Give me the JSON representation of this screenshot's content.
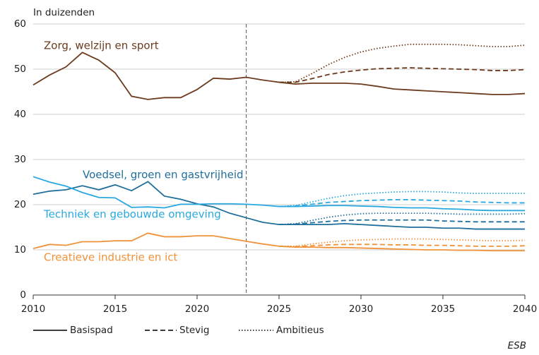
{
  "chart_data": {
    "type": "line",
    "y_label": "In duizenden",
    "source": "ESB",
    "x": [
      2010,
      2011,
      2012,
      2013,
      2014,
      2015,
      2016,
      2017,
      2018,
      2019,
      2020,
      2021,
      2022,
      2023,
      2024,
      2025,
      2026,
      2027,
      2028,
      2029,
      2030,
      2031,
      2032,
      2033,
      2034,
      2035,
      2036,
      2037,
      2038,
      2039,
      2040
    ],
    "xlim": [
      2010,
      2040
    ],
    "xticks": [
      2010,
      2015,
      2020,
      2025,
      2030,
      2035,
      2040
    ],
    "ylim": [
      0,
      60
    ],
    "yticks": [
      0,
      10,
      20,
      30,
      40,
      50,
      60
    ],
    "grid": true,
    "vline": 2023,
    "scenarios": [
      {
        "name": "Basispad",
        "dash": "solid"
      },
      {
        "name": "Stevig",
        "dash": "dashed"
      },
      {
        "name": "Ambitieus",
        "dash": "dotted"
      }
    ],
    "series": [
      {
        "name": "Zorg, welzijn en sport",
        "color": "#6b3b1e",
        "values": [
          [
            46.5,
            48.7,
            50.5,
            53.7,
            52,
            49.2,
            44,
            43.3,
            43.7,
            43.7,
            45.5,
            48,
            47.8,
            48.2,
            47.6,
            47.1,
            46.7,
            46.9,
            46.9,
            46.9,
            46.7,
            46.2,
            45.6,
            45.4,
            45.2,
            45,
            44.8,
            44.6,
            44.4,
            44.4,
            44.6
          ],
          [
            null,
            null,
            null,
            null,
            null,
            null,
            null,
            null,
            null,
            null,
            null,
            null,
            null,
            null,
            null,
            47.1,
            47.1,
            47.9,
            48.8,
            49.4,
            49.8,
            50.1,
            50.2,
            50.3,
            50.2,
            50.1,
            50,
            49.9,
            49.7,
            49.7,
            49.9
          ],
          [
            null,
            null,
            null,
            null,
            null,
            null,
            null,
            null,
            null,
            null,
            null,
            null,
            null,
            null,
            null,
            47.1,
            47.2,
            49,
            51,
            52.6,
            53.8,
            54.6,
            55.1,
            55.5,
            55.5,
            55.5,
            55.4,
            55.2,
            55,
            55,
            55.3
          ]
        ]
      },
      {
        "name": "Voedsel, groen en gastvrijheid",
        "color": "#1f6e9c",
        "values": [
          [
            22.3,
            23,
            23.3,
            24.2,
            23.3,
            24.4,
            23.1,
            25.1,
            21.9,
            21.2,
            20.2,
            19.5,
            18.1,
            17.1,
            16.1,
            15.6,
            15.6,
            15.6,
            15.6,
            15.8,
            15.6,
            15.4,
            15.2,
            15,
            15,
            14.8,
            14.8,
            14.6,
            14.6,
            14.6,
            14.6
          ],
          [
            null,
            null,
            null,
            null,
            null,
            null,
            null,
            null,
            null,
            null,
            null,
            null,
            null,
            null,
            null,
            15.6,
            15.7,
            16,
            16.3,
            16.5,
            16.6,
            16.6,
            16.6,
            16.6,
            16.6,
            16.4,
            16.3,
            16.2,
            16.2,
            16.2,
            16.2
          ],
          [
            null,
            null,
            null,
            null,
            null,
            null,
            null,
            null,
            null,
            null,
            null,
            null,
            null,
            null,
            null,
            15.6,
            15.8,
            16.5,
            17.2,
            17.7,
            18,
            18.1,
            18.1,
            18.1,
            18.1,
            18,
            17.9,
            17.9,
            17.9,
            17.9,
            18
          ]
        ]
      },
      {
        "name": "Techniek en gebouwde omgeving",
        "color": "#29a9e0",
        "values": [
          [
            26.2,
            25,
            24.1,
            22.7,
            21.6,
            21.5,
            19.4,
            19.5,
            19.3,
            20.1,
            20.1,
            20.2,
            20.2,
            20.1,
            19.9,
            19.6,
            19.6,
            19.7,
            19.8,
            19.8,
            19.7,
            19.6,
            19.4,
            19.3,
            19.3,
            19.1,
            19,
            18.8,
            18.7,
            18.7,
            18.7
          ],
          [
            null,
            null,
            null,
            null,
            null,
            null,
            null,
            null,
            null,
            null,
            null,
            null,
            null,
            null,
            null,
            19.6,
            19.7,
            20.1,
            20.5,
            20.7,
            20.9,
            21,
            21.1,
            21.1,
            21,
            20.9,
            20.8,
            20.6,
            20.5,
            20.4,
            20.4
          ],
          [
            null,
            null,
            null,
            null,
            null,
            null,
            null,
            null,
            null,
            null,
            null,
            null,
            null,
            null,
            null,
            19.6,
            19.8,
            20.6,
            21.4,
            22,
            22.4,
            22.6,
            22.8,
            22.9,
            22.9,
            22.8,
            22.6,
            22.5,
            22.5,
            22.5,
            22.5
          ]
        ]
      },
      {
        "name": "Creatieve industrie en ict",
        "color": "#f0923a",
        "values": [
          [
            10.3,
            11.2,
            11,
            11.8,
            11.8,
            12,
            12,
            13.7,
            12.9,
            12.9,
            13.1,
            13.1,
            12.5,
            11.9,
            11.3,
            10.8,
            10.6,
            10.6,
            10.5,
            10.5,
            10.4,
            10.3,
            10.2,
            10.1,
            10,
            10,
            9.9,
            9.9,
            9.8,
            9.8,
            9.8
          ],
          [
            null,
            null,
            null,
            null,
            null,
            null,
            null,
            null,
            null,
            null,
            null,
            null,
            null,
            null,
            null,
            10.8,
            10.7,
            10.9,
            11.1,
            11.2,
            11.2,
            11.2,
            11.1,
            11.1,
            11,
            11,
            10.9,
            10.8,
            10.8,
            10.8,
            10.9
          ],
          [
            null,
            null,
            null,
            null,
            null,
            null,
            null,
            null,
            null,
            null,
            null,
            null,
            null,
            null,
            null,
            10.8,
            10.8,
            11.3,
            11.7,
            12,
            12.2,
            12.3,
            12.4,
            12.4,
            12.4,
            12.3,
            12.2,
            12.1,
            12,
            12,
            12.1
          ]
        ]
      }
    ]
  }
}
